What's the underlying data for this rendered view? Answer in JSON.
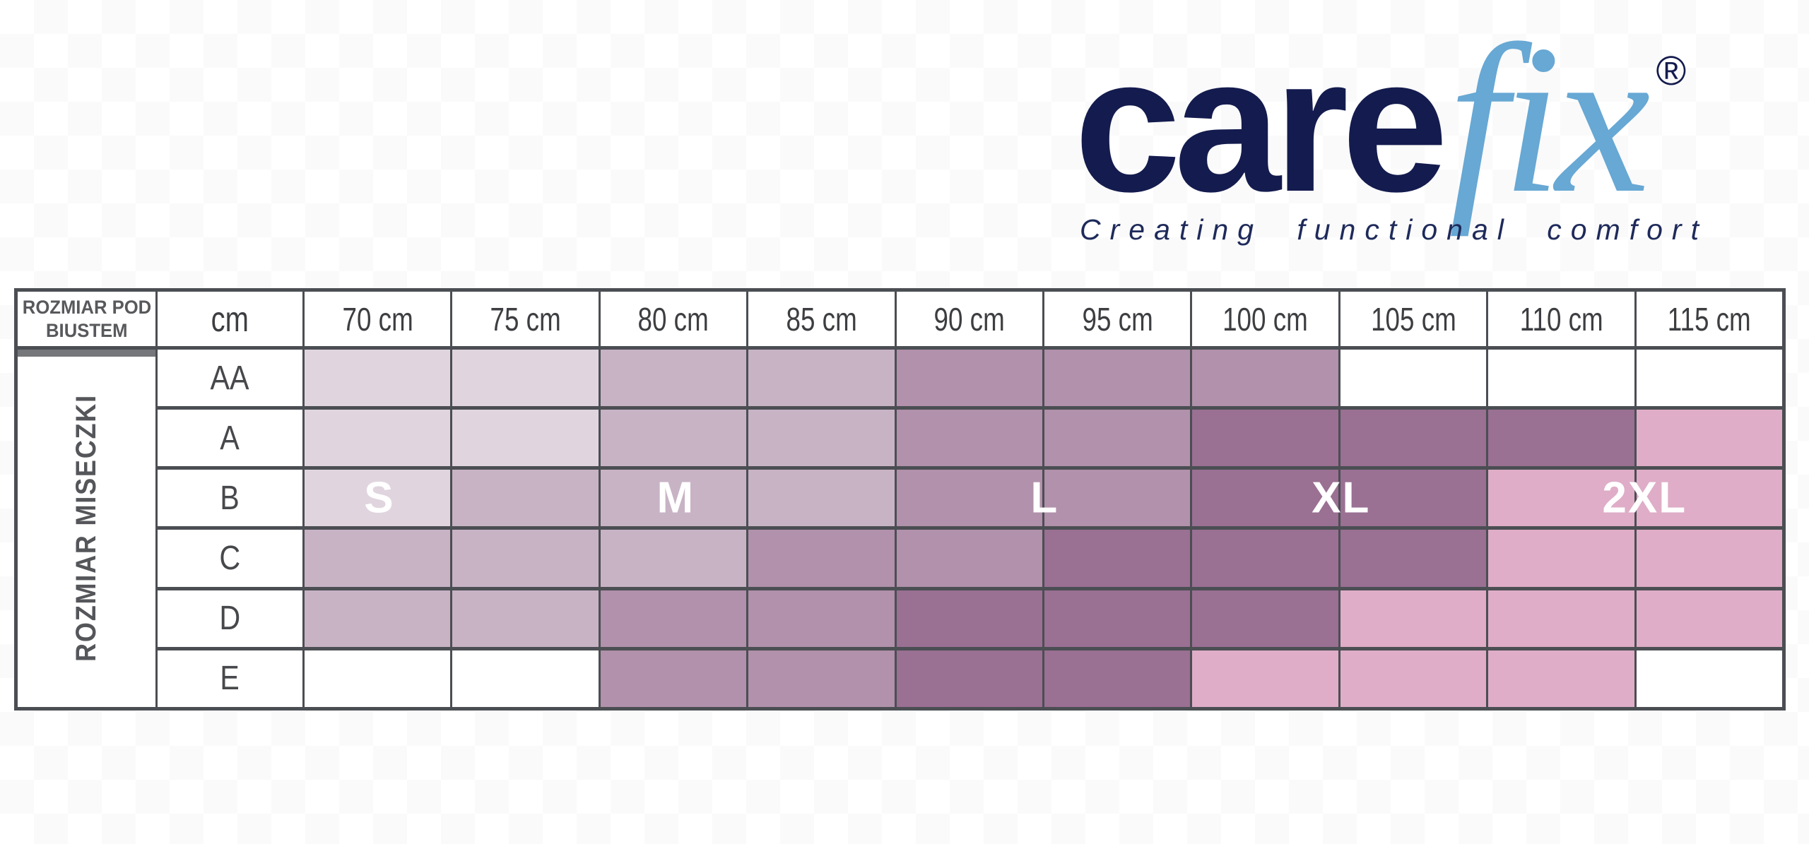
{
  "logo": {
    "brand_part1": "care",
    "brand_part2": "fix",
    "registered_mark": "®",
    "tagline": "Creating functional comfort",
    "colors": {
      "part1": "#141b4e",
      "part2": "#67a8d4",
      "tagline": "#1e2a5a"
    }
  },
  "table": {
    "corner_header_line1": "ROZMIAR POD",
    "corner_header_line2": "BIUSTEM",
    "unit_header": "cm",
    "col_headers": [
      "70 cm",
      "75 cm",
      "80 cm",
      "85 cm",
      "90 cm",
      "95 cm",
      "100 cm",
      "105 cm",
      "110 cm",
      "115 cm"
    ],
    "row_axis_label": "ROZMIAR MISECZKI",
    "cup_sizes": [
      "AA",
      "A",
      "B",
      "C",
      "D",
      "E"
    ],
    "size_labels": [
      "S",
      "M",
      "L",
      "XL",
      "2XL"
    ],
    "size_colors": {
      "S": "#e0d5df",
      "M": "#c8b3c5",
      "L": "#b191ab",
      "XL": "#9a7093",
      "2XL": "#dfadc7"
    },
    "border_color": "#4b4e53",
    "chart_data": {
      "type": "heatmap",
      "x_categories_underbust_cm": [
        70,
        75,
        80,
        85,
        90,
        95,
        100,
        105,
        110,
        115
      ],
      "y_categories_cup": [
        "AA",
        "A",
        "B",
        "C",
        "D",
        "E"
      ],
      "legend_entries": [
        "S",
        "M",
        "L",
        "XL",
        "2XL"
      ],
      "grid": [
        [
          "S",
          "S",
          "M",
          "M",
          "L",
          "L",
          "L",
          "",
          "",
          ""
        ],
        [
          "S",
          "S",
          "M",
          "M",
          "L",
          "L",
          "XL",
          "XL",
          "XL",
          "2XL"
        ],
        [
          "S",
          "M",
          "M",
          "M",
          "L",
          "L",
          "XL",
          "XL",
          "2XL",
          "2XL"
        ],
        [
          "M",
          "M",
          "M",
          "L",
          "L",
          "XL",
          "XL",
          "XL",
          "2XL",
          "2XL"
        ],
        [
          "M",
          "M",
          "L",
          "L",
          "XL",
          "XL",
          "XL",
          "2XL",
          "2XL",
          "2XL"
        ],
        [
          "",
          "",
          "L",
          "L",
          "XL",
          "XL",
          "2XL",
          "2XL",
          "2XL",
          ""
        ]
      ]
    }
  }
}
